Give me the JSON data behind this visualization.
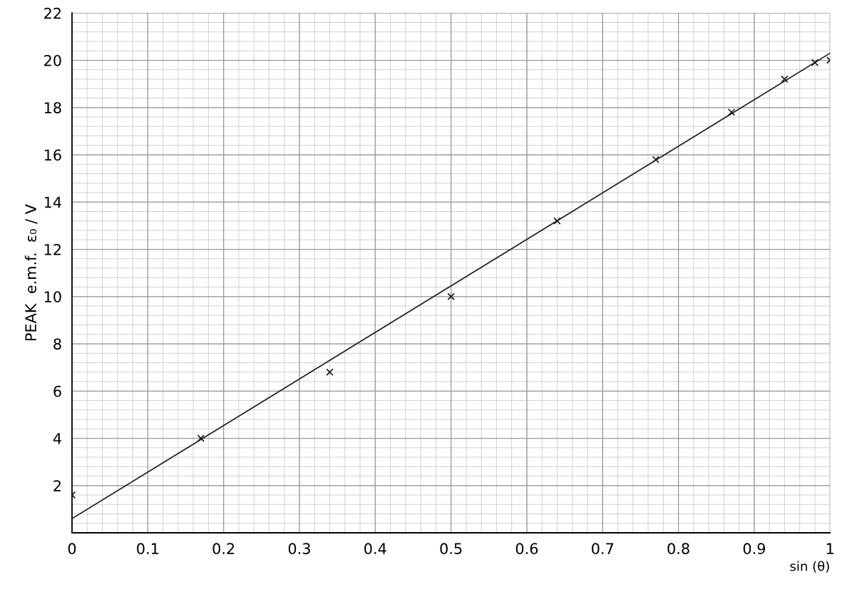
{
  "chart_data": {
    "type": "scatter",
    "xlabel": "sin (θ)",
    "ylabel": "PEAK  e.m.f.  ε₀ / V",
    "x": [
      0,
      0.17,
      0.34,
      0.5,
      0.64,
      0.77,
      0.87,
      0.94,
      0.98,
      1.0
    ],
    "series": [
      {
        "color": "#1a1a1a",
        "marker": "cross",
        "values": [
          1.6,
          4.0,
          6.8,
          10.0,
          13.2,
          15.8,
          17.8,
          19.2,
          19.9,
          20.0
        ]
      },
      {
        "type": "line",
        "color": "#1a1a1a",
        "marker": "none",
        "line_style": "solid",
        "x": [
          0,
          1
        ],
        "values": [
          0.6,
          20.3
        ]
      }
    ],
    "xlim": [
      0,
      1
    ],
    "ylim": [
      0,
      22
    ],
    "xticks": [
      0,
      0.1,
      0.2,
      0.3,
      0.4,
      0.5,
      0.6,
      0.7,
      0.8,
      0.9,
      1
    ],
    "yticks": [
      2,
      4,
      6,
      8,
      10,
      12,
      14,
      16,
      18,
      20,
      22
    ],
    "grid": true
  }
}
